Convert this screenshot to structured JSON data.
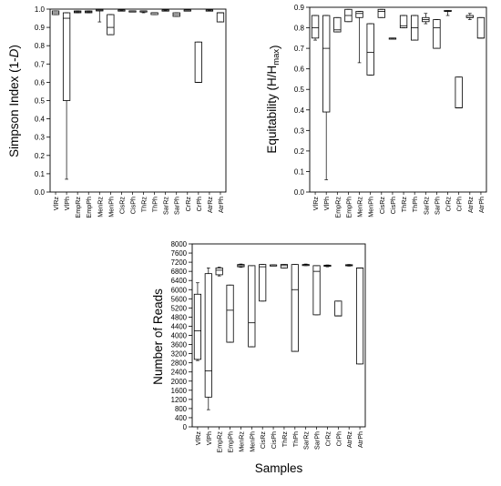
{
  "chart_data": [
    {
      "type": "box",
      "ylabel_parts": [
        [
          "Simpson Index (1-",
          "normal"
        ],
        [
          "D",
          "italic"
        ],
        [
          ")",
          "normal"
        ]
      ],
      "ylim": [
        0,
        1.0
      ],
      "yticks": [
        "0.0",
        "0.1",
        "0.2",
        "0.3",
        "0.4",
        "0.5",
        "0.6",
        "0.7",
        "0.8",
        "0.9",
        "1.0"
      ],
      "yticks_values": [
        0,
        0.1,
        0.2,
        0.3,
        0.4,
        0.5,
        0.6,
        0.7,
        0.8,
        0.9,
        1.0
      ],
      "categories": [
        "VlRz",
        "VlPh",
        "EmpRz",
        "EmpPh",
        "MenRz",
        "MenPh",
        "CisRz",
        "CisPh",
        "ThRz",
        "ThPh",
        "SarRz",
        "SarPh",
        "CrRz",
        "CrPh",
        "AtrRz",
        "AtrPh"
      ],
      "boxes": [
        {
          "wmin": 0.97,
          "q1": 0.97,
          "med": 0.98,
          "q3": 0.99,
          "wmax": 0.99
        },
        {
          "wmin": 0.07,
          "q1": 0.5,
          "med": 0.95,
          "q3": 0.98,
          "wmax": 0.98
        },
        {
          "wmin": 0.98,
          "q1": 0.98,
          "med": 0.985,
          "q3": 0.99,
          "wmax": 0.99
        },
        {
          "wmin": 0.98,
          "q1": 0.98,
          "med": 0.985,
          "q3": 0.99,
          "wmax": 0.99
        },
        {
          "wmin": 0.93,
          "q1": 0.99,
          "med": 0.995,
          "q3": 1.0,
          "wmax": 1.0
        },
        {
          "wmin": 0.86,
          "q1": 0.86,
          "med": 0.9,
          "q3": 0.97,
          "wmax": 0.97
        },
        {
          "wmin": 0.99,
          "q1": 0.99,
          "med": 0.995,
          "q3": 0.995,
          "wmax": 0.995
        },
        {
          "wmin": 0.99,
          "q1": 0.99,
          "med": 0.99,
          "q3": 0.99,
          "wmax": 0.99
        },
        {
          "wmin": 0.98,
          "q1": 0.985,
          "med": 0.99,
          "q3": 0.99,
          "wmax": 0.99
        },
        {
          "wmin": 0.97,
          "q1": 0.97,
          "med": 0.98,
          "q3": 0.98,
          "wmax": 0.98
        },
        {
          "wmin": 0.99,
          "q1": 0.99,
          "med": 0.995,
          "q3": 0.995,
          "wmax": 0.995
        },
        {
          "wmin": 0.96,
          "q1": 0.96,
          "med": 0.97,
          "q3": 0.98,
          "wmax": 0.98
        },
        {
          "wmin": 0.995,
          "q1": 0.995,
          "med": 0.995,
          "q3": 0.995,
          "wmax": 0.995
        },
        {
          "wmin": 0.6,
          "q1": 0.6,
          "med": 0.6,
          "q3": 0.82,
          "wmax": 0.82
        },
        {
          "wmin": 0.99,
          "q1": 0.99,
          "med": 0.995,
          "q3": 0.995,
          "wmax": 0.995
        },
        {
          "wmin": 0.93,
          "q1": 0.93,
          "med": 0.98,
          "q3": 0.98,
          "wmax": 0.98
        }
      ]
    },
    {
      "type": "box",
      "ylabel_parts": [
        [
          "Equitability (H/H",
          "normal"
        ],
        [
          "max",
          "sub"
        ],
        [
          ")",
          "normal"
        ]
      ],
      "ylim": [
        0,
        0.9
      ],
      "yticks": [
        "0.0",
        "0.1",
        "0.2",
        "0.3",
        "0.4",
        "0.5",
        "0.6",
        "0.7",
        "0.8",
        "0.9"
      ],
      "yticks_values": [
        0,
        0.1,
        0.2,
        0.3,
        0.4,
        0.5,
        0.6,
        0.7,
        0.8,
        0.9
      ],
      "categories": [
        "VlRz",
        "VlPh",
        "EmpRz",
        "EmpPh",
        "MenRz",
        "MenPh",
        "CisRz",
        "CisPh",
        "ThRz",
        "ThPh",
        "SarRz",
        "SarPh",
        "CrRz",
        "CrPh",
        "AtrRz",
        "AtrPh"
      ],
      "boxes": [
        {
          "wmin": 0.74,
          "q1": 0.75,
          "med": 0.8,
          "q3": 0.86,
          "wmax": 0.86
        },
        {
          "wmin": 0.06,
          "q1": 0.39,
          "med": 0.7,
          "q3": 0.86,
          "wmax": 0.86
        },
        {
          "wmin": 0.78,
          "q1": 0.78,
          "med": 0.79,
          "q3": 0.85,
          "wmax": 0.85
        },
        {
          "wmin": 0.83,
          "q1": 0.83,
          "med": 0.86,
          "q3": 0.89,
          "wmax": 0.89
        },
        {
          "wmin": 0.63,
          "q1": 0.85,
          "med": 0.87,
          "q3": 0.88,
          "wmax": 0.88
        },
        {
          "wmin": 0.57,
          "q1": 0.57,
          "med": 0.68,
          "q3": 0.82,
          "wmax": 0.82
        },
        {
          "wmin": 0.85,
          "q1": 0.85,
          "med": 0.88,
          "q3": 0.89,
          "wmax": 0.89
        },
        {
          "wmin": 0.75,
          "q1": 0.75,
          "med": 0.75,
          "q3": 0.75,
          "wmax": 0.75
        },
        {
          "wmin": 0.8,
          "q1": 0.8,
          "med": 0.81,
          "q3": 0.86,
          "wmax": 0.86
        },
        {
          "wmin": 0.74,
          "q1": 0.74,
          "med": 0.8,
          "q3": 0.86,
          "wmax": 0.86
        },
        {
          "wmin": 0.82,
          "q1": 0.83,
          "med": 0.84,
          "q3": 0.85,
          "wmax": 0.87
        },
        {
          "wmin": 0.7,
          "q1": 0.7,
          "med": 0.8,
          "q3": 0.84,
          "wmax": 0.84
        },
        {
          "wmin": 0.86,
          "q1": 0.88,
          "med": 0.88,
          "q3": 0.885,
          "wmax": 0.885
        },
        {
          "wmin": 0.41,
          "q1": 0.41,
          "med": 0.41,
          "q3": 0.56,
          "wmax": 0.56
        },
        {
          "wmin": 0.84,
          "q1": 0.85,
          "med": 0.85,
          "q3": 0.86,
          "wmax": 0.87
        },
        {
          "wmin": 0.75,
          "q1": 0.75,
          "med": 0.75,
          "q3": 0.85,
          "wmax": 0.85
        }
      ]
    },
    {
      "type": "box",
      "ylabel_parts": [
        [
          "Number of Reads",
          "normal"
        ]
      ],
      "xlabel": "Samples",
      "ylim": [
        0,
        8000
      ],
      "yticks": [
        "0",
        "400",
        "800",
        "1200",
        "1600",
        "2000",
        "2400",
        "2800",
        "3200",
        "3600",
        "4000",
        "4400",
        "4800",
        "5200",
        "5600",
        "6000",
        "6400",
        "6800",
        "7200",
        "7600",
        "8000"
      ],
      "yticks_values": [
        0,
        400,
        800,
        1200,
        1600,
        2000,
        2400,
        2800,
        3200,
        3600,
        4000,
        4400,
        4800,
        5200,
        5600,
        6000,
        6400,
        6800,
        7200,
        7600,
        8000
      ],
      "categories": [
        "VlRz",
        "VlPh",
        "EmpRz",
        "EmpPh",
        "MenRz",
        "MenPh",
        "CisRz",
        "CisPh",
        "ThRz",
        "ThPh",
        "SarRz",
        "SarPh",
        "CrRz",
        "CrPh",
        "AtrRz",
        "AtrPh"
      ],
      "boxes": [
        {
          "wmin": 2900,
          "q1": 2950,
          "med": 4200,
          "q3": 5800,
          "wmax": 6300
        },
        {
          "wmin": 750,
          "q1": 1300,
          "med": 2450,
          "q3": 6700,
          "wmax": 6950
        },
        {
          "wmin": 6600,
          "q1": 6650,
          "med": 6850,
          "q3": 6950,
          "wmax": 6980
        },
        {
          "wmin": 3700,
          "q1": 3700,
          "med": 5100,
          "q3": 6200,
          "wmax": 6200
        },
        {
          "wmin": 6980,
          "q1": 7000,
          "med": 7050,
          "q3": 7100,
          "wmax": 7120
        },
        {
          "wmin": 3500,
          "q1": 3500,
          "med": 4550,
          "q3": 7050,
          "wmax": 7050
        },
        {
          "wmin": 5500,
          "q1": 5500,
          "med": 7000,
          "q3": 7100,
          "wmax": 7100
        },
        {
          "wmin": 7080,
          "q1": 7080,
          "med": 7080,
          "q3": 7080,
          "wmax": 7080
        },
        {
          "wmin": 6950,
          "q1": 6950,
          "med": 7050,
          "q3": 7100,
          "wmax": 7100
        },
        {
          "wmin": 3300,
          "q1": 3300,
          "med": 6000,
          "q3": 7100,
          "wmax": 7100
        },
        {
          "wmin": 7050,
          "q1": 7070,
          "med": 7090,
          "q3": 7100,
          "wmax": 7120
        },
        {
          "wmin": 4900,
          "q1": 4900,
          "med": 6800,
          "q3": 7050,
          "wmax": 7050
        },
        {
          "wmin": 7000,
          "q1": 7020,
          "med": 7050,
          "q3": 7070,
          "wmax": 7080
        },
        {
          "wmin": 4850,
          "q1": 4850,
          "med": 4850,
          "q3": 5500,
          "wmax": 5500
        },
        {
          "wmin": 7030,
          "q1": 7050,
          "med": 7070,
          "q3": 7090,
          "wmax": 7100
        },
        {
          "wmin": 2750,
          "q1": 2750,
          "med": 6950,
          "q3": 6950,
          "wmax": 6950
        }
      ]
    }
  ]
}
